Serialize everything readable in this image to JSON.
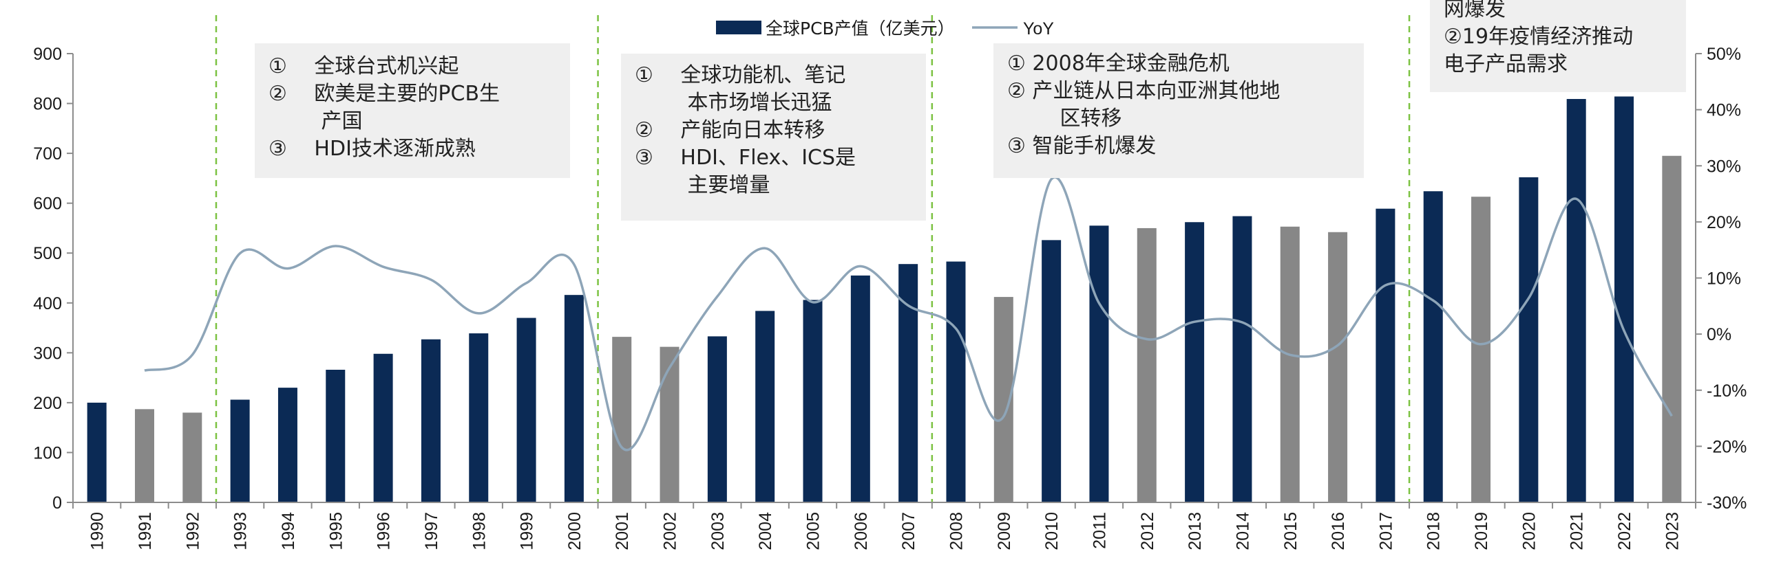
{
  "chart_data": {
    "type": "bar+line",
    "categories": [
      "1990",
      "1991",
      "1992",
      "1993",
      "1994",
      "1995",
      "1996",
      "1997",
      "1998",
      "1999",
      "2000",
      "2001",
      "2002",
      "2003",
      "2004",
      "2005",
      "2006",
      "2007",
      "2008",
      "2009",
      "2010",
      "2011",
      "2012",
      "2013",
      "2014",
      "2015",
      "2016",
      "2017",
      "2018",
      "2019",
      "2020",
      "2021",
      "2022",
      "2023"
    ],
    "series": [
      {
        "name": "全球PCB产值（亿美元）",
        "type": "bar",
        "axis": "left",
        "values": [
          200,
          187,
          180,
          206,
          230,
          266,
          298,
          327,
          339,
          370,
          416,
          332,
          312,
          333,
          384,
          406,
          455,
          478,
          483,
          412,
          526,
          555,
          550,
          562,
          574,
          553,
          542,
          589,
          624,
          613,
          652,
          809,
          814,
          695
        ]
      },
      {
        "name": "YoY",
        "type": "line",
        "axis": "right",
        "values": [
          null,
          -6.5,
          -3.7,
          14.4,
          11.7,
          15.7,
          12.0,
          9.7,
          3.7,
          9.1,
          12.4,
          -20.2,
          -6.0,
          6.7,
          15.3,
          5.7,
          12.1,
          5.1,
          1.0,
          -14.7,
          27.6,
          5.5,
          -0.9,
          2.2,
          2.1,
          -3.7,
          -2.0,
          8.7,
          6.0,
          -1.8,
          6.4,
          24.1,
          0.6,
          -14.6
        ]
      }
    ],
    "bar_colors": [
      "#0b2a55",
      "#878787",
      "#878787",
      "#0b2a55",
      "#0b2a55",
      "#0b2a55",
      "#0b2a55",
      "#0b2a55",
      "#0b2a55",
      "#0b2a55",
      "#0b2a55",
      "#878787",
      "#878787",
      "#0b2a55",
      "#0b2a55",
      "#0b2a55",
      "#0b2a55",
      "#0b2a55",
      "#0b2a55",
      "#878787",
      "#0b2a55",
      "#0b2a55",
      "#878787",
      "#0b2a55",
      "#0b2a55",
      "#878787",
      "#878787",
      "#0b2a55",
      "#0b2a55",
      "#878787",
      "#0b2a55",
      "#0b2a55",
      "#0b2a55",
      "#878787"
    ],
    "line_color": "#8ea5b8",
    "divider_color": "#7cc242",
    "dividers_after": [
      "1992",
      "2000",
      "2007",
      "2017"
    ],
    "y_left": {
      "min": 0,
      "max": 900,
      "ticks": [
        "0",
        "100",
        "200",
        "300",
        "400",
        "500",
        "600",
        "700",
        "800",
        "900"
      ]
    },
    "y_right": {
      "min": -30,
      "max": 50,
      "ticks": [
        "-30%",
        "-20%",
        "-10%",
        "0%",
        "10%",
        "20%",
        "30%",
        "40%",
        "50%"
      ]
    },
    "legend": {
      "position": "top-center",
      "bar_label": "全球PCB产值（亿美元）",
      "line_label": "YoY"
    },
    "annotations": [
      {
        "lines": [
          "①  全球台式机兴起",
          "②  欧美是主要的PCB生",
          "产国",
          "③  HDI技术逐渐成熟"
        ],
        "indent": [
          false,
          false,
          true,
          false
        ]
      },
      {
        "lines": [
          "①  全球功能机、笔记",
          "本市场增长迅猛",
          "②  产能向日本转移",
          "③  HDI、Flex、ICS是",
          "主要增量"
        ],
        "indent": [
          false,
          true,
          false,
          false,
          true
        ]
      },
      {
        "lines": [
          "① 2008年全球金融危机",
          "② 产业链从日本向亚洲其他地",
          "区转移",
          "③ 智能手机爆发"
        ],
        "indent": [
          false,
          false,
          true,
          false
        ]
      },
      {
        "lines": [
          "网爆发",
          "②19年疫情经济推动",
          "电子产品需求"
        ],
        "indent": [
          false,
          false,
          false
        ]
      }
    ],
    "colors": {
      "bar_primary": "#0b2a55",
      "bar_secondary": "#878787",
      "annotation_bg": "#efefef"
    }
  }
}
